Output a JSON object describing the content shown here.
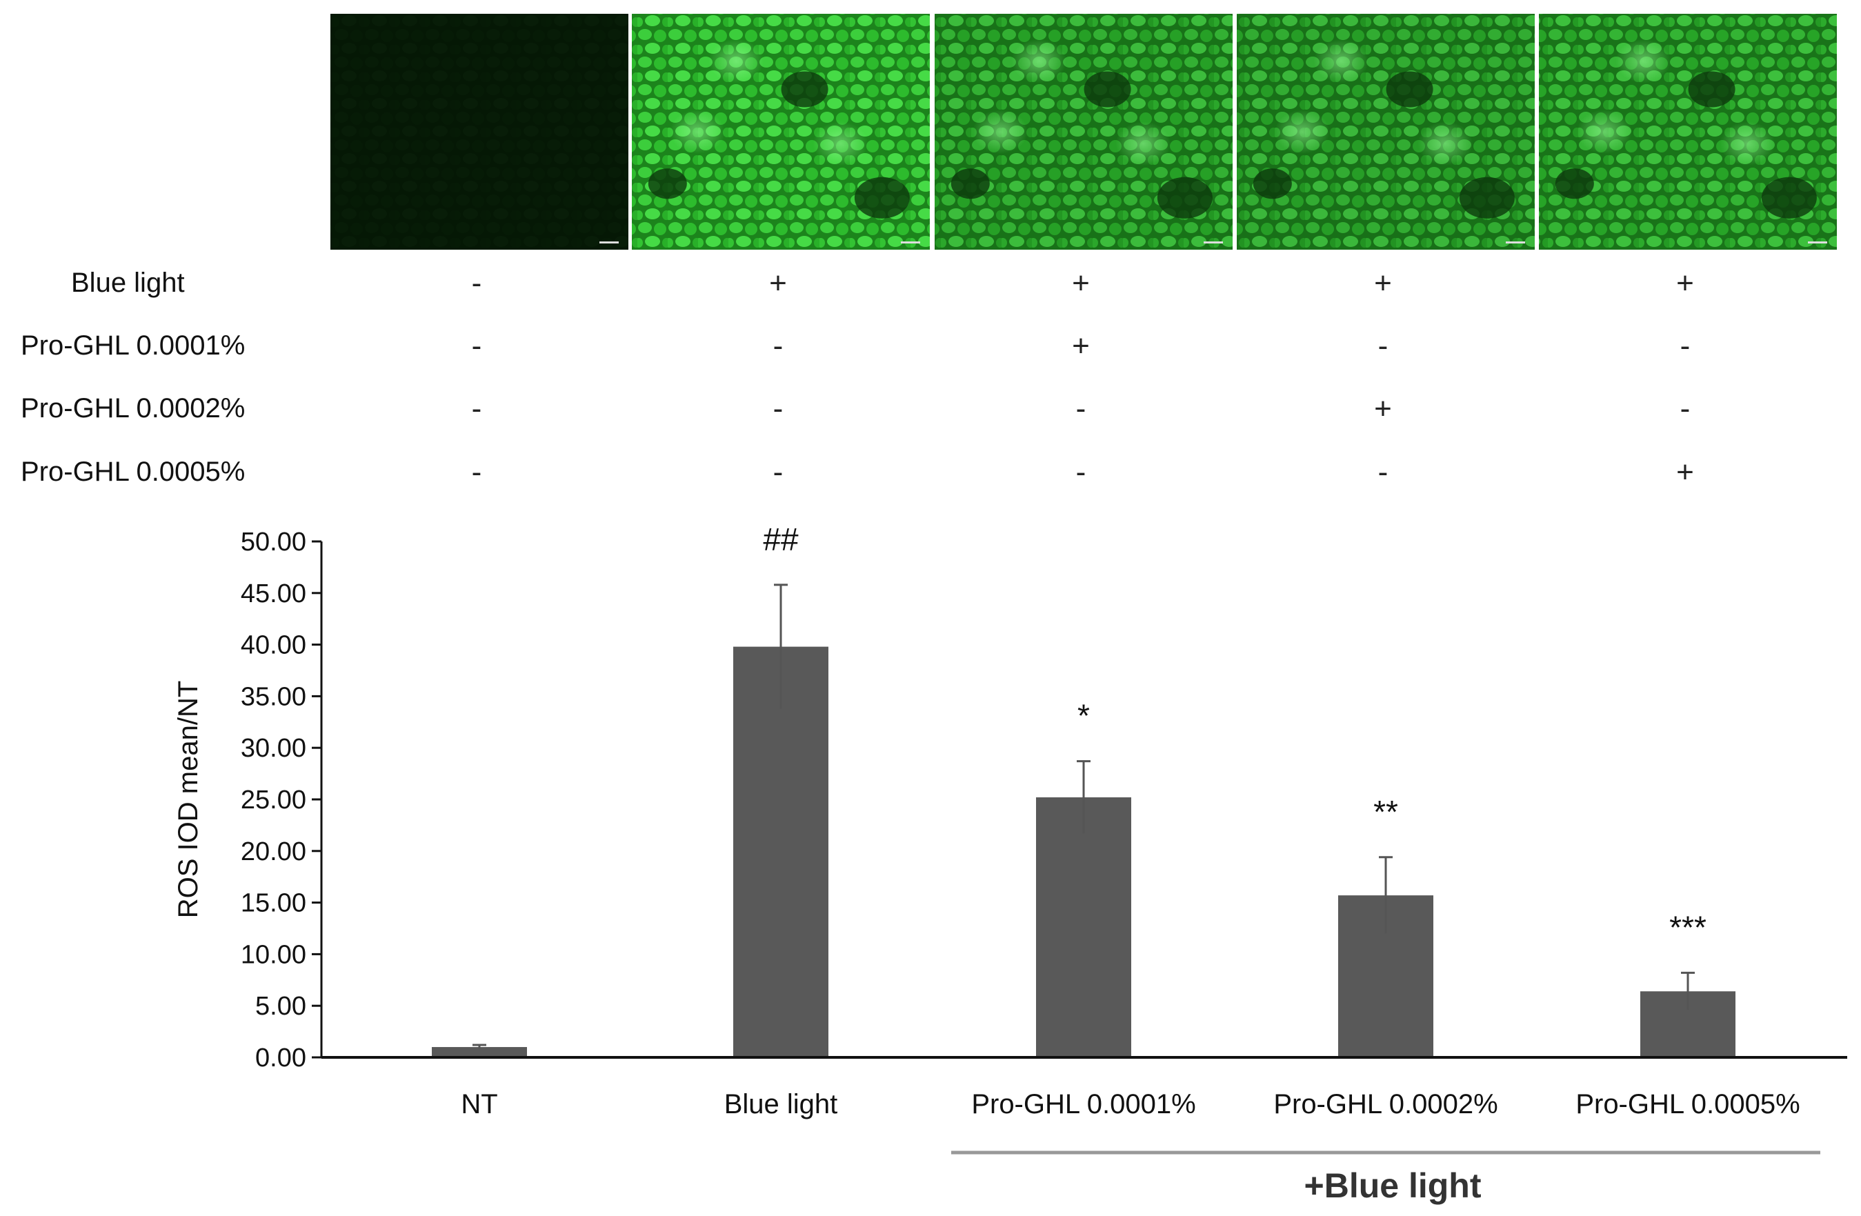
{
  "micrographs": {
    "panels": [
      {
        "brightness": 0.05
      },
      {
        "brightness": 0.95
      },
      {
        "brightness": 0.8
      },
      {
        "brightness": 0.78
      },
      {
        "brightness": 0.82
      }
    ]
  },
  "condition_table": {
    "rows": [
      {
        "label": "Blue light",
        "signs": [
          "-",
          "+",
          "+",
          "+",
          "+"
        ]
      },
      {
        "label": "Pro-GHL 0.0001%",
        "signs": [
          "-",
          "-",
          "+",
          "-",
          "-"
        ]
      },
      {
        "label": "Pro-GHL 0.0002%",
        "signs": [
          "-",
          "-",
          "-",
          "+",
          "-"
        ]
      },
      {
        "label": "Pro-GHL 0.0005%",
        "signs": [
          "-",
          "-",
          "-",
          "-",
          "+"
        ]
      }
    ]
  },
  "chart_data": {
    "type": "bar",
    "categories": [
      "NT",
      "Blue light",
      "Pro-GHL 0.0001%",
      "Pro-GHL 0.0002%",
      "Pro-GHL 0.0005%"
    ],
    "values": [
      1.0,
      39.8,
      25.2,
      15.7,
      6.4
    ],
    "errors": [
      0.2,
      6.0,
      3.5,
      3.7,
      1.8
    ],
    "significance": [
      "",
      "##",
      "*",
      "**",
      "***"
    ],
    "ylabel": "ROS IOD mean/NT",
    "ylim": [
      0,
      50
    ],
    "yticks": [
      "0.00",
      "5.00",
      "10.00",
      "15.00",
      "20.00",
      "25.00",
      "30.00",
      "35.00",
      "40.00",
      "45.00",
      "50.00"
    ],
    "bar_color": "#595959",
    "group_label": "+Blue light",
    "group_start_index": 2,
    "grid": false,
    "legend": "none"
  }
}
